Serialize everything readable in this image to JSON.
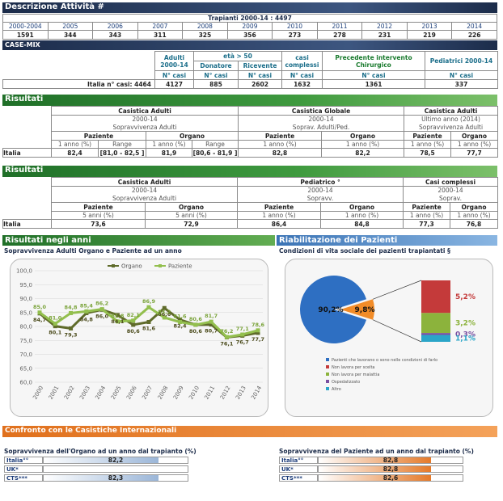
{
  "header": {
    "title": "Descrizione Attività #"
  },
  "trapianti": {
    "label": "Trapianti 2000-14 : 4497",
    "years": [
      "2000-2004",
      "2005",
      "2006",
      "2007",
      "2008",
      "2009",
      "2010",
      "2011",
      "2012",
      "2013",
      "2014"
    ],
    "counts": [
      "1591",
      "344",
      "343",
      "311",
      "325",
      "356",
      "273",
      "278",
      "231",
      "219",
      "226"
    ]
  },
  "casemix": {
    "title": "CASE-MIX",
    "h_adulti": "Adulti 2000-14",
    "h_eta": "età > 50",
    "h_donatore": "Donatore",
    "h_ricevente": "Ricevente",
    "h_complessi": "casi complessi",
    "h_precedente": "Precedente intervento Chirurgico",
    "h_pediatrici": "Pediatrici 2000-14",
    "ncasi": "N° casi",
    "italia": "Italia n° casi: 4464",
    "values": [
      "4127",
      "885",
      "2602",
      "1632",
      "1361",
      "337"
    ]
  },
  "risultati1": {
    "title": "Risultati",
    "g1": {
      "t": "Casistica Adulti",
      "p": "2000-14",
      "s": "Sopravvivenza Adulti"
    },
    "g2": {
      "t": "Casistica Globale",
      "p": "2000-14",
      "s": "Soprav. Adulti/Ped."
    },
    "g3": {
      "t": "Casistica Adulti",
      "p": "Ultimo anno (2014)",
      "s": "Sopravvivenza Adulti"
    },
    "paziente": "Paziente",
    "organo": "Organo",
    "anno": "1 anno (%)",
    "range": "Range",
    "italia": "Italia",
    "v": [
      "82,4",
      "[81,0 - 82,5 ]",
      "81,9",
      "[80,6 - 81,9 ]",
      "82,8",
      "82,2",
      "78,5",
      "77,7"
    ]
  },
  "risultati2": {
    "title": "Risultati",
    "g1": {
      "t": "Casistica Adulti",
      "p": "2000-14",
      "s": "Sopravvivenza Adulti"
    },
    "g2": {
      "t": "Pediatrico °",
      "p": "2000-14",
      "s": "Sopravv."
    },
    "g3": {
      "t": "Casi complessi",
      "p": "2000-14",
      "s": "Soprav."
    },
    "paziente": "Paziente",
    "organo": "Organo",
    "anni5": "5 anni (%)",
    "anno": "1 anno (%)",
    "italia": "Italia",
    "v": [
      "73,6",
      "72,9",
      "86,4",
      "84,8",
      "77,3",
      "76,8"
    ]
  },
  "sec_anni": {
    "title": "Risultati negli anni",
    "sub": "Sopravvivenza Adulti Organo e Paziente ad un anno"
  },
  "sec_riab": {
    "title": "Riabilitazione dei Pazienti",
    "sub": "Condizioni di vita sociale dei pazienti trapiantati §"
  },
  "chart_data": [
    {
      "type": "line",
      "x": [
        "2000",
        "2001",
        "2002",
        "2003",
        "2004",
        "2005",
        "2006",
        "2007",
        "2008",
        "2009",
        "2010",
        "2011",
        "2012",
        "2013",
        "2014"
      ],
      "ylim": [
        60,
        100
      ],
      "yticks": [
        "60,0",
        "65,0",
        "70,0",
        "75,0",
        "80,0",
        "85,0",
        "90,0",
        "95,0",
        "100,0"
      ],
      "legend": "top",
      "series": [
        {
          "name": "Organo",
          "color": "#5f6b2a",
          "values": [
            84.7,
            80.1,
            79.3,
            84.8,
            86.0,
            84.1,
            80.6,
            81.6,
            86.6,
            82.4,
            80.6,
            80.7,
            76.1,
            76.7,
            77.7
          ]
        },
        {
          "name": "Paziente",
          "color": "#93bf4e",
          "values": [
            85.0,
            81.0,
            84.8,
            85.4,
            86.2,
            81.8,
            82.1,
            86.9,
            83.2,
            81.6,
            80.6,
            81.7,
            76.2,
            77.1,
            78.6
          ]
        }
      ],
      "labels_organo": [
        "84,7",
        "80,1",
        "79,3",
        "84,8",
        "86,0",
        "84,1",
        "80,6",
        "81,6",
        "86,6",
        "82,4",
        "80,6",
        "80,7",
        "76,1",
        "76,7",
        "77,7"
      ],
      "labels_paziente": [
        "85,0",
        "81,0",
        "84,8",
        "85,4",
        "86,2",
        "81,8",
        "82,1",
        "86,9",
        "83,2",
        "81,6",
        "80,6",
        "81,7",
        "76,2",
        "77,1",
        "78,6"
      ]
    },
    {
      "type": "pie",
      "slices": [
        {
          "label": "90,2%",
          "value": 90.2,
          "color": "#2e6fc2"
        },
        {
          "label": "9,8%",
          "value": 9.8,
          "color": "#f28c28"
        }
      ],
      "bar": [
        {
          "label": "5,2%",
          "value": 5.2,
          "color": "#c43a3a"
        },
        {
          "label": "3,2%",
          "value": 3.2,
          "color": "#8cb33c"
        },
        {
          "label": "0,3%",
          "value": 0.3,
          "color": "#7a4fa0"
        },
        {
          "label": "1,1%",
          "value": 1.1,
          "color": "#2aa5c8"
        }
      ],
      "legend": [
        "Pazienti che lavorano o sono nelle condizioni di farlo",
        "Non lavora per scelta",
        "Non lavora per malattia",
        "Ospedalizzato",
        "Altro"
      ],
      "legend_colors": [
        "#2e6fc2",
        "#c43a3a",
        "#8cb33c",
        "#7a4fa0",
        "#2aa5c8"
      ]
    }
  ],
  "confronto": {
    "title": "Confronto con le Casistiche Internazionali",
    "left": {
      "title": "Sopravvivenza dell'Organo ad un anno dal trapianto (%)",
      "rows": [
        {
          "name": "Italia°°",
          "value": "82,2",
          "fill": 0.8
        },
        {
          "name": "UK*",
          "value": "",
          "fill": 0
        },
        {
          "name": "CTS***",
          "value": "82,3",
          "fill": 0.8
        }
      ]
    },
    "right": {
      "title": "Sopravvivenza del Paziente ad un anno dal trapianto (%)",
      "rows": [
        {
          "name": "Italia°°",
          "value": "82,8",
          "fill": 0.78
        },
        {
          "name": "UK*",
          "value": "82,8",
          "fill": 0.78
        },
        {
          "name": "CTS***",
          "value": "82,6",
          "fill": 0.78
        }
      ]
    }
  }
}
